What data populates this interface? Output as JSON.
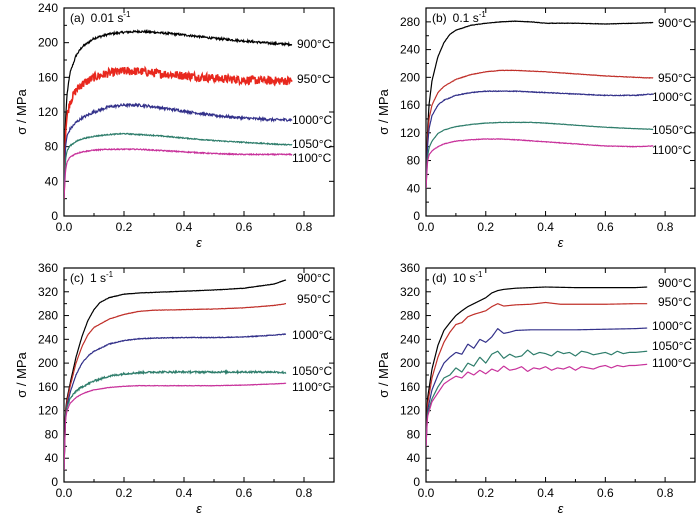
{
  "chart_data": [
    {
      "type": "line",
      "panel": "(a)",
      "rate": "0.01 s",
      "rate_sup": "-1",
      "xlabel": "ε",
      "ylabel": "σ / MPa",
      "xlim": [
        0,
        0.9
      ],
      "ylim": [
        0,
        240
      ],
      "xticks": [
        "0.0",
        "0.2",
        "0.4",
        "0.6",
        "0.8"
      ],
      "yticks": [
        "0",
        "40",
        "80",
        "120",
        "160",
        "200",
        "240"
      ],
      "series": [
        {
          "name": "900°C",
          "color": "#000000",
          "noise": 1.2,
          "x": [
            0,
            0.005,
            0.01,
            0.02,
            0.04,
            0.06,
            0.1,
            0.15,
            0.2,
            0.25,
            0.3,
            0.4,
            0.5,
            0.6,
            0.7,
            0.76
          ],
          "y": [
            20,
            110,
            140,
            165,
            185,
            195,
            205,
            210,
            212,
            213,
            212,
            209,
            205,
            202,
            199,
            198
          ]
        },
        {
          "name": "950°C",
          "color": "#e8281e",
          "noise": 5,
          "x": [
            0,
            0.005,
            0.01,
            0.02,
            0.04,
            0.06,
            0.1,
            0.15,
            0.2,
            0.25,
            0.3,
            0.4,
            0.5,
            0.6,
            0.7,
            0.76
          ],
          "y": [
            20,
            95,
            115,
            132,
            145,
            152,
            160,
            165,
            167,
            167,
            165,
            162,
            159,
            157,
            156,
            156
          ]
        },
        {
          "name": "1000°C",
          "color": "#33318a",
          "noise": 1.5,
          "x": [
            0,
            0.005,
            0.01,
            0.02,
            0.04,
            0.06,
            0.1,
            0.15,
            0.2,
            0.25,
            0.3,
            0.4,
            0.5,
            0.6,
            0.7,
            0.76
          ],
          "y": [
            20,
            80,
            92,
            100,
            108,
            113,
            120,
            126,
            128,
            128,
            126,
            121,
            116,
            113,
            111,
            111
          ]
        },
        {
          "name": "1050°C",
          "color": "#2e7d6b",
          "noise": 0.6,
          "x": [
            0,
            0.005,
            0.01,
            0.02,
            0.04,
            0.06,
            0.1,
            0.15,
            0.2,
            0.25,
            0.3,
            0.4,
            0.5,
            0.6,
            0.7,
            0.76
          ],
          "y": [
            20,
            65,
            75,
            81,
            86,
            89,
            92,
            94,
            95,
            94,
            93,
            90,
            87,
            85,
            83,
            82
          ]
        },
        {
          "name": "1100°C",
          "color": "#c8329b",
          "noise": 0.6,
          "x": [
            0,
            0.005,
            0.01,
            0.02,
            0.04,
            0.06,
            0.1,
            0.15,
            0.2,
            0.25,
            0.3,
            0.4,
            0.5,
            0.6,
            0.7,
            0.76
          ],
          "y": [
            20,
            52,
            62,
            68,
            72,
            74,
            76,
            77,
            77,
            77,
            76,
            74,
            72,
            71,
            71,
            71
          ]
        }
      ]
    },
    {
      "type": "line",
      "panel": "(b)",
      "rate": "0.1 s",
      "rate_sup": "-1",
      "xlabel": "ε",
      "ylabel": "σ / MPa",
      "xlim": [
        0,
        0.9
      ],
      "ylim": [
        0,
        300
      ],
      "xticks": [
        "0.0",
        "0.2",
        "0.4",
        "0.6",
        "0.8"
      ],
      "yticks": [
        "0",
        "40",
        "80",
        "120",
        "160",
        "200",
        "240",
        "280"
      ],
      "series": [
        {
          "name": "900°C",
          "color": "#000000",
          "noise": 0.3,
          "x": [
            0,
            0.005,
            0.01,
            0.02,
            0.04,
            0.06,
            0.08,
            0.1,
            0.15,
            0.2,
            0.25,
            0.3,
            0.35,
            0.4,
            0.5,
            0.6,
            0.7,
            0.76
          ],
          "y": [
            40,
            120,
            160,
            195,
            230,
            250,
            262,
            268,
            275,
            278,
            280,
            281,
            280,
            278,
            278,
            277,
            278,
            279
          ]
        },
        {
          "name": "950°C",
          "color": "#c0302a",
          "noise": 0.3,
          "x": [
            0,
            0.005,
            0.01,
            0.02,
            0.04,
            0.06,
            0.1,
            0.15,
            0.2,
            0.25,
            0.3,
            0.35,
            0.4,
            0.5,
            0.6,
            0.7,
            0.76
          ],
          "y": [
            40,
            110,
            140,
            160,
            178,
            187,
            197,
            204,
            208,
            210,
            210,
            209,
            208,
            205,
            202,
            200,
            199
          ]
        },
        {
          "name": "1000°C",
          "color": "#33318a",
          "noise": 0.5,
          "x": [
            0,
            0.005,
            0.01,
            0.02,
            0.04,
            0.06,
            0.1,
            0.15,
            0.2,
            0.25,
            0.3,
            0.35,
            0.4,
            0.5,
            0.6,
            0.7,
            0.76
          ],
          "y": [
            40,
            100,
            125,
            145,
            160,
            167,
            174,
            178,
            180,
            180,
            180,
            179,
            178,
            176,
            174,
            174,
            176
          ]
        },
        {
          "name": "1050°C",
          "color": "#2e7d6b",
          "noise": 0.3,
          "x": [
            0,
            0.005,
            0.01,
            0.02,
            0.04,
            0.06,
            0.1,
            0.15,
            0.2,
            0.25,
            0.3,
            0.35,
            0.4,
            0.5,
            0.6,
            0.7,
            0.76
          ],
          "y": [
            40,
            85,
            98,
            108,
            119,
            124,
            129,
            132,
            134,
            135,
            135,
            135,
            134,
            131,
            128,
            126,
            125
          ]
        },
        {
          "name": "1100°C",
          "color": "#c8329b",
          "noise": 0.4,
          "x": [
            0,
            0.005,
            0.01,
            0.02,
            0.04,
            0.06,
            0.1,
            0.15,
            0.2,
            0.25,
            0.3,
            0.4,
            0.5,
            0.6,
            0.7,
            0.76
          ],
          "y": [
            40,
            78,
            88,
            94,
            100,
            104,
            108,
            110,
            111,
            111,
            110,
            107,
            104,
            101,
            100,
            101
          ]
        }
      ]
    },
    {
      "type": "line",
      "panel": "(c)",
      "rate": "1 s",
      "rate_sup": "-1",
      "xlabel": "ε",
      "ylabel": "σ / MPa",
      "xlim": [
        0,
        0.9
      ],
      "ylim": [
        0,
        360
      ],
      "xticks": [
        "0.0",
        "0.2",
        "0.4",
        "0.6",
        "0.8"
      ],
      "yticks": [
        "0",
        "40",
        "80",
        "120",
        "160",
        "200",
        "240",
        "280",
        "320",
        "360"
      ],
      "series": [
        {
          "name": "900°C",
          "color": "#000000",
          "noise": 0.3,
          "x": [
            0,
            0.005,
            0.01,
            0.02,
            0.04,
            0.06,
            0.08,
            0.1,
            0.12,
            0.15,
            0.2,
            0.25,
            0.3,
            0.4,
            0.5,
            0.6,
            0.7,
            0.74
          ],
          "y": [
            20,
            120,
            140,
            165,
            210,
            245,
            272,
            290,
            302,
            310,
            316,
            318,
            319,
            321,
            323,
            326,
            333,
            340
          ]
        },
        {
          "name": "950°C",
          "color": "#c0302a",
          "noise": 0.3,
          "x": [
            0,
            0.005,
            0.01,
            0.02,
            0.04,
            0.06,
            0.08,
            0.1,
            0.15,
            0.2,
            0.25,
            0.3,
            0.4,
            0.5,
            0.6,
            0.7,
            0.74
          ],
          "y": [
            20,
            115,
            135,
            160,
            200,
            228,
            248,
            260,
            274,
            282,
            287,
            289,
            290,
            291,
            293,
            297,
            300
          ]
        },
        {
          "name": "1000°C",
          "color": "#33318a",
          "noise": 0.6,
          "x": [
            0,
            0.005,
            0.01,
            0.02,
            0.04,
            0.06,
            0.08,
            0.1,
            0.15,
            0.2,
            0.25,
            0.3,
            0.4,
            0.5,
            0.6,
            0.7,
            0.74
          ],
          "y": [
            20,
            110,
            128,
            150,
            180,
            200,
            212,
            220,
            232,
            238,
            241,
            242,
            243,
            243,
            244,
            247,
            249
          ]
        },
        {
          "name": "1050°C",
          "color": "#2e7d6b",
          "noise": 1.5,
          "x": [
            0,
            0.005,
            0.01,
            0.02,
            0.04,
            0.06,
            0.08,
            0.1,
            0.15,
            0.2,
            0.25,
            0.3,
            0.4,
            0.5,
            0.6,
            0.7,
            0.74
          ],
          "y": [
            20,
            110,
            125,
            140,
            153,
            160,
            165,
            170,
            178,
            182,
            184,
            185,
            185,
            185,
            185,
            185,
            184
          ]
        },
        {
          "name": "1100°C",
          "color": "#c8329b",
          "noise": 0.4,
          "x": [
            0,
            0.005,
            0.01,
            0.02,
            0.04,
            0.06,
            0.08,
            0.1,
            0.15,
            0.2,
            0.25,
            0.3,
            0.4,
            0.5,
            0.6,
            0.7,
            0.74
          ],
          "y": [
            20,
            105,
            120,
            132,
            142,
            148,
            152,
            155,
            159,
            161,
            162,
            162,
            162,
            162,
            163,
            165,
            166
          ]
        }
      ]
    },
    {
      "type": "line",
      "panel": "(d)",
      "rate": "10 s",
      "rate_sup": "-1",
      "xlabel": "ε",
      "ylabel": "σ / MPa",
      "xlim": [
        0,
        0.9
      ],
      "ylim": [
        0,
        360
      ],
      "xticks": [
        "0.0",
        "0.2",
        "0.4",
        "0.6",
        "0.8"
      ],
      "yticks": [
        "0",
        "40",
        "80",
        "120",
        "160",
        "200",
        "240",
        "280",
        "320",
        "360"
      ],
      "series": [
        {
          "name": "900°C",
          "color": "#000000",
          "noise": 0,
          "x": [
            0,
            0.005,
            0.02,
            0.04,
            0.06,
            0.08,
            0.1,
            0.12,
            0.14,
            0.16,
            0.18,
            0.2,
            0.22,
            0.24,
            0.26,
            0.3,
            0.35,
            0.4,
            0.5,
            0.6,
            0.7,
            0.74
          ],
          "y": [
            60,
            140,
            190,
            230,
            255,
            268,
            280,
            288,
            295,
            300,
            305,
            310,
            318,
            322,
            324,
            326,
            327,
            328,
            327,
            327,
            327,
            328
          ]
        },
        {
          "name": "950°C",
          "color": "#c0302a",
          "noise": 0,
          "x": [
            0,
            0.005,
            0.02,
            0.04,
            0.06,
            0.08,
            0.1,
            0.12,
            0.14,
            0.16,
            0.18,
            0.2,
            0.22,
            0.24,
            0.26,
            0.3,
            0.35,
            0.4,
            0.45,
            0.5,
            0.6,
            0.7,
            0.74
          ],
          "y": [
            60,
            130,
            175,
            210,
            235,
            252,
            265,
            268,
            278,
            282,
            285,
            288,
            295,
            300,
            296,
            298,
            299,
            302,
            299,
            299,
            299,
            300,
            300
          ]
        },
        {
          "name": "1000°C",
          "color": "#33318a",
          "noise": 0,
          "x": [
            0,
            0.005,
            0.02,
            0.04,
            0.06,
            0.08,
            0.1,
            0.12,
            0.14,
            0.16,
            0.18,
            0.2,
            0.22,
            0.24,
            0.26,
            0.28,
            0.3,
            0.35,
            0.4,
            0.5,
            0.6,
            0.7,
            0.74
          ],
          "y": [
            60,
            120,
            155,
            180,
            200,
            210,
            218,
            215,
            232,
            225,
            240,
            235,
            244,
            258,
            250,
            252,
            255,
            256,
            256,
            256,
            257,
            258,
            259
          ]
        },
        {
          "name": "1050°C",
          "color": "#2e7d6b",
          "noise": 0,
          "x": [
            0,
            0.005,
            0.02,
            0.04,
            0.06,
            0.08,
            0.1,
            0.12,
            0.14,
            0.16,
            0.18,
            0.2,
            0.22,
            0.24,
            0.26,
            0.28,
            0.3,
            0.32,
            0.34,
            0.36,
            0.38,
            0.4,
            0.42,
            0.44,
            0.46,
            0.48,
            0.5,
            0.52,
            0.54,
            0.56,
            0.58,
            0.6,
            0.62,
            0.64,
            0.66,
            0.68,
            0.7,
            0.74
          ],
          "y": [
            60,
            115,
            140,
            160,
            175,
            180,
            192,
            185,
            200,
            195,
            210,
            200,
            215,
            220,
            208,
            215,
            210,
            212,
            222,
            214,
            218,
            216,
            212,
            220,
            216,
            218,
            212,
            220,
            218,
            214,
            216,
            218,
            214,
            220,
            216,
            218,
            218,
            220
          ]
        },
        {
          "name": "1100°C",
          "color": "#c8329b",
          "noise": 0,
          "x": [
            0,
            0.005,
            0.02,
            0.04,
            0.06,
            0.08,
            0.1,
            0.12,
            0.14,
            0.16,
            0.18,
            0.2,
            0.22,
            0.24,
            0.26,
            0.28,
            0.3,
            0.32,
            0.34,
            0.36,
            0.38,
            0.4,
            0.42,
            0.44,
            0.46,
            0.48,
            0.5,
            0.52,
            0.54,
            0.56,
            0.58,
            0.6,
            0.62,
            0.64,
            0.66,
            0.68,
            0.7,
            0.74
          ],
          "y": [
            60,
            110,
            135,
            150,
            165,
            172,
            178,
            175,
            185,
            180,
            188,
            182,
            190,
            186,
            195,
            188,
            190,
            194,
            186,
            192,
            190,
            194,
            188,
            192,
            190,
            194,
            188,
            194,
            192,
            190,
            194,
            196,
            192,
            196,
            194,
            196,
            196,
            198
          ]
        }
      ]
    }
  ]
}
